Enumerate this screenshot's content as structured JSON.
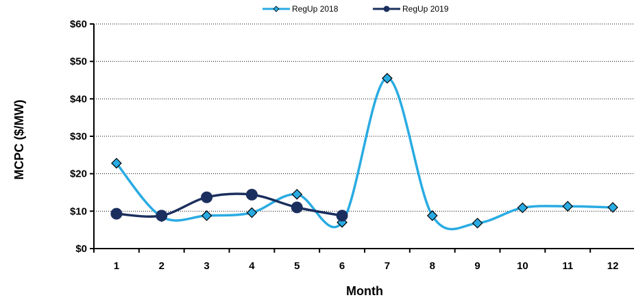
{
  "chart_data": {
    "type": "line",
    "xlabel": "Month",
    "ylabel": "MCPC ($/MW)",
    "categories": [
      "1",
      "2",
      "3",
      "4",
      "5",
      "6",
      "7",
      "8",
      "9",
      "10",
      "11",
      "12"
    ],
    "ylim": [
      0,
      60
    ],
    "yticks": [
      0,
      10,
      20,
      30,
      40,
      50,
      60
    ],
    "ytick_labels": [
      "$0",
      "$10",
      "$20",
      "$30",
      "$40",
      "$50",
      "$60"
    ],
    "grid": "horizontal dotted",
    "legend_position": "top-center",
    "series": [
      {
        "name": "RegUp 2018",
        "color": "#29ABE2",
        "marker": "diamond",
        "values": [
          22.8,
          8.5,
          8.8,
          9.6,
          14.5,
          7.0,
          45.5,
          8.8,
          6.8,
          10.9,
          11.3,
          11.0
        ]
      },
      {
        "name": "RegUp 2019",
        "color": "#1B2F5E",
        "marker": "circle",
        "values": [
          9.3,
          8.8,
          13.7,
          14.4,
          11.0,
          8.8,
          null,
          null,
          null,
          null,
          null,
          null
        ]
      }
    ]
  }
}
